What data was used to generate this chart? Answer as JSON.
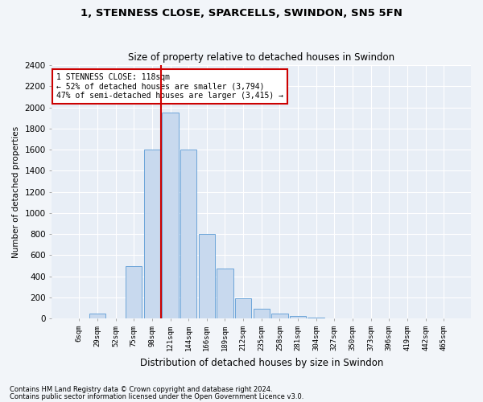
{
  "title": "1, STENNESS CLOSE, SPARCELLS, SWINDON, SN5 5FN",
  "subtitle": "Size of property relative to detached houses in Swindon",
  "xlabel": "Distribution of detached houses by size in Swindon",
  "ylabel": "Number of detached properties",
  "bar_color": "#c8d9ee",
  "bar_edge_color": "#5b9bd5",
  "background_color": "#e8eef6",
  "grid_color": "#ffffff",
  "vline_color": "#cc0000",
  "categories": [
    "6sqm",
    "29sqm",
    "52sqm",
    "75sqm",
    "98sqm",
    "121sqm",
    "144sqm",
    "166sqm",
    "189sqm",
    "212sqm",
    "235sqm",
    "258sqm",
    "281sqm",
    "304sqm",
    "327sqm",
    "350sqm",
    "373sqm",
    "396sqm",
    "419sqm",
    "442sqm",
    "465sqm"
  ],
  "values": [
    0,
    50,
    0,
    500,
    1600,
    1950,
    1600,
    800,
    475,
    190,
    90,
    50,
    25,
    10,
    0,
    0,
    0,
    0,
    0,
    0,
    0
  ],
  "ylim": [
    0,
    2400
  ],
  "yticks": [
    0,
    200,
    400,
    600,
    800,
    1000,
    1200,
    1400,
    1600,
    1800,
    2000,
    2200,
    2400
  ],
  "vline_x_index": 5,
  "annotation_text": "1 STENNESS CLOSE: 118sqm\n← 52% of detached houses are smaller (3,794)\n47% of semi-detached houses are larger (3,415) →",
  "footnote1": "Contains HM Land Registry data © Crown copyright and database right 2024.",
  "footnote2": "Contains public sector information licensed under the Open Government Licence v3.0.",
  "fig_bg": "#f2f5f9"
}
